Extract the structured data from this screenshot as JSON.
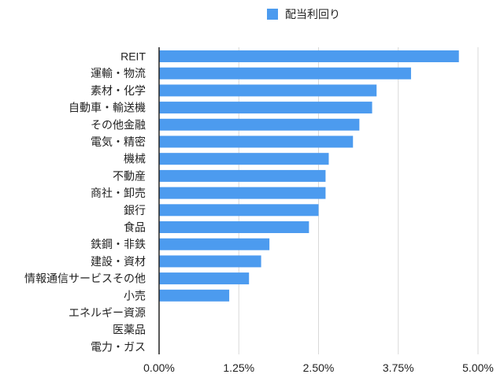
{
  "chart_data": {
    "type": "bar",
    "orientation": "horizontal",
    "categories": [
      "REIT",
      "運輸・物流",
      "素材・化学",
      "自動車・輸送機",
      "その他金融",
      "電気・精密",
      "機械",
      "不動産",
      "商社・卸売",
      "銀行",
      "食品",
      "鉄鋼・非鉄",
      "建設・資材",
      "情報通信サービスその他",
      "小売",
      "エネルギー資源",
      "医薬品",
      "電力・ガス"
    ],
    "series": [
      {
        "name": "配当利回り",
        "color": "#4c9bef",
        "values": [
          4.7,
          3.95,
          3.41,
          3.34,
          3.14,
          3.04,
          2.66,
          2.61,
          2.61,
          2.5,
          2.35,
          1.73,
          1.6,
          1.41,
          1.1,
          0,
          0,
          0
        ]
      }
    ],
    "xlim": [
      0,
      5
    ],
    "xticks": [
      "0.00%",
      "1.25%",
      "2.50%",
      "3.75%",
      "5.00%"
    ],
    "xtick_values": [
      0,
      1.25,
      2.5,
      3.75,
      5
    ],
    "grid": true,
    "legend_position": "top"
  }
}
